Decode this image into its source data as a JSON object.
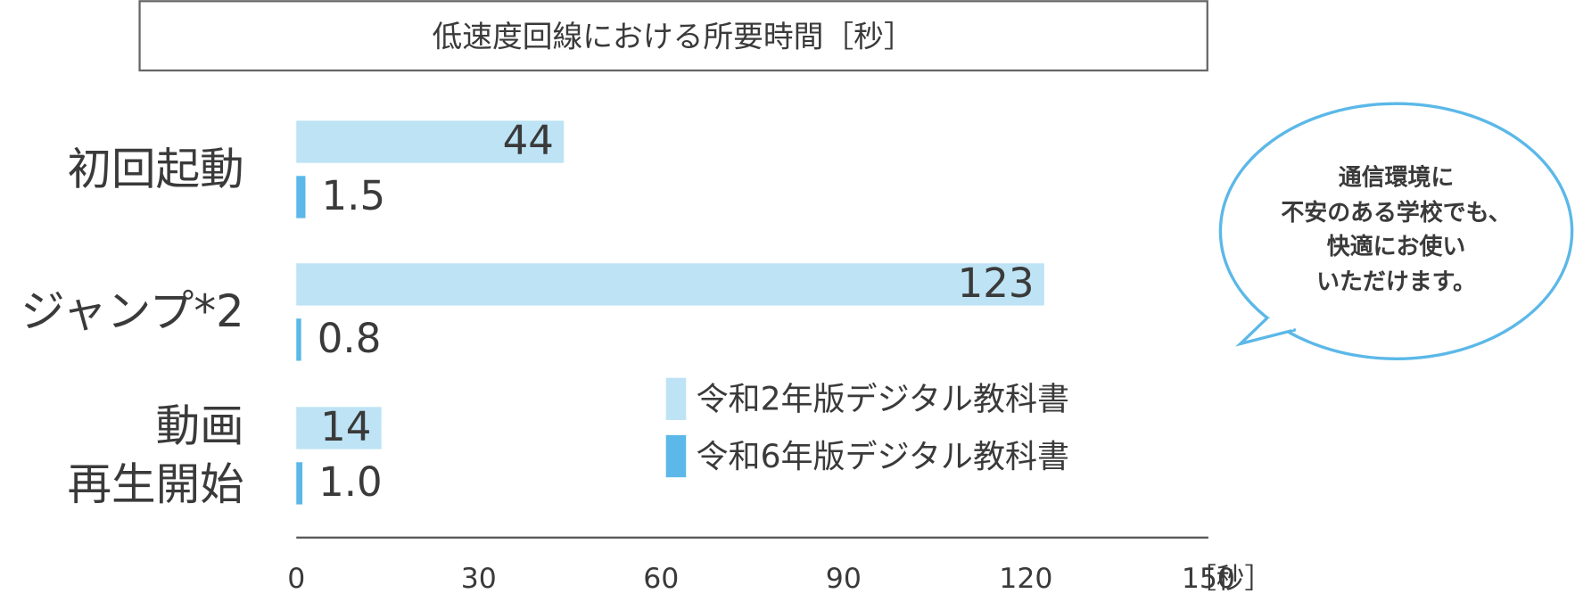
{
  "chart_data": {
    "type": "hbar",
    "title": "低速度回線における所要時間［秒］",
    "categories": [
      "初回起動",
      "ジャンプ*2",
      "動画\n再生開始"
    ],
    "series": [
      {
        "name": "令和2年版デジタル教科書",
        "color": "#bde3f5",
        "values": [
          44,
          123,
          14
        ]
      },
      {
        "name": "令和6年版デジタル教科書",
        "color": "#5bb8e8",
        "values": [
          1.5,
          0.8,
          1.0
        ],
        "value_labels": [
          "1.5",
          "0.8",
          "1.0"
        ]
      }
    ],
    "xlim": [
      0,
      150
    ],
    "xticks": [
      0,
      30,
      60,
      90,
      120,
      150
    ],
    "x_unit_label": "［秒］",
    "annotation": "通信環境に\n不安のある学校でも、\n快適にお使い\nいただけます。"
  }
}
